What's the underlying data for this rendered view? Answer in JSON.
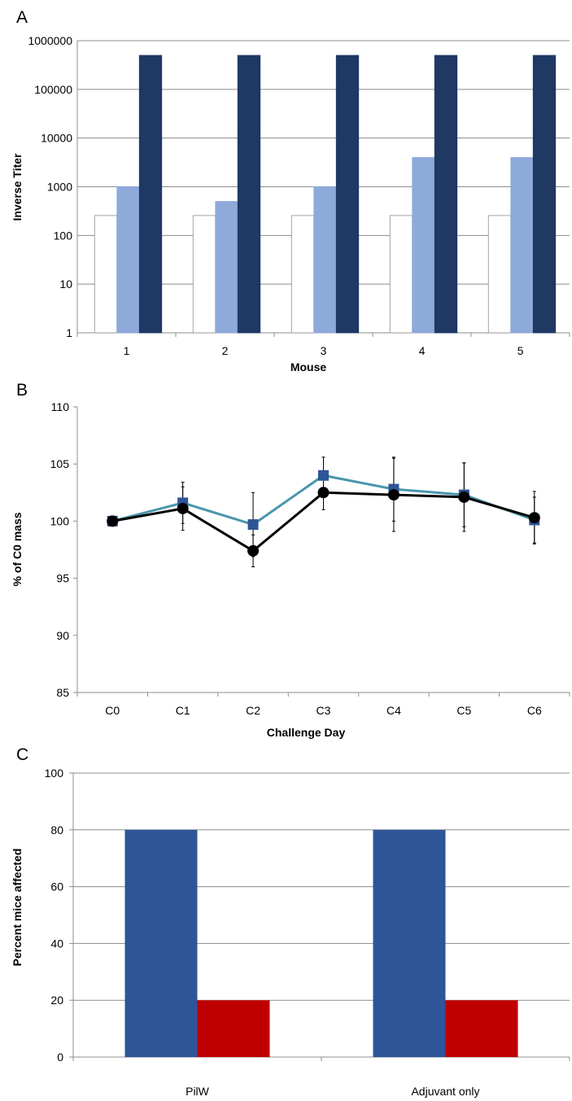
{
  "panels": [
    {
      "letter": "A"
    },
    {
      "letter": "B"
    },
    {
      "letter": "C"
    }
  ],
  "chart_data": [
    {
      "type": "bar",
      "panel": "A",
      "xlabel": "Mouse",
      "ylabel": "Inverse Titer",
      "yscale": "log",
      "ylim": [
        1,
        1000000
      ],
      "yticks": [
        "1",
        "10",
        "100",
        "1000",
        "10000",
        "100000",
        "1000000"
      ],
      "categories": [
        "1",
        "2",
        "3",
        "4",
        "5"
      ],
      "series": [
        {
          "values": [
            256,
            256,
            256,
            256,
            256
          ],
          "color": "#ffffff"
        },
        {
          "values": [
            1000,
            500,
            1000,
            4000,
            4000
          ],
          "color": "#8eaadb"
        },
        {
          "values": [
            500000,
            500000,
            500000,
            500000,
            500000
          ],
          "color": "#1f3864"
        }
      ],
      "grid": true,
      "legend": "none"
    },
    {
      "type": "line",
      "panel": "B",
      "xlabel": "Challenge Day",
      "ylabel": "% of C0 mass",
      "ylim": [
        85,
        110
      ],
      "yticks": [
        "85",
        "90",
        "95",
        "100",
        "105",
        "110"
      ],
      "categories": [
        "C0",
        "C1",
        "C2",
        "C3",
        "C4",
        "C5",
        "C6"
      ],
      "series": [
        {
          "marker": "square",
          "color": "#4a96ac",
          "marker_color": "#2e5597",
          "values": [
            100,
            101.6,
            99.7,
            104,
            102.8,
            102.3,
            100.1
          ],
          "errors": [
            0,
            1.8,
            2.8,
            1.6,
            2.8,
            2.8,
            2.0
          ]
        },
        {
          "marker": "circle",
          "color": "#000000",
          "marker_color": "#000000",
          "values": [
            100,
            101.1,
            97.4,
            102.5,
            102.3,
            102.1,
            100.3
          ],
          "errors": [
            0,
            1.9,
            1.4,
            1.5,
            3.2,
            3.0,
            2.3
          ]
        }
      ],
      "grid": false,
      "legend": "none"
    },
    {
      "type": "bar",
      "panel": "C",
      "ylabel": "Percent mice affected",
      "ylim": [
        0,
        100
      ],
      "yticks": [
        "0",
        "20",
        "40",
        "60",
        "80",
        "100"
      ],
      "categories": [
        "PilW",
        "Adjuvant only"
      ],
      "series": [
        {
          "values": [
            80,
            80
          ],
          "color": "#2e5597"
        },
        {
          "values": [
            20,
            20
          ],
          "color": "#c00000"
        }
      ],
      "grid": true,
      "legend": "none"
    }
  ]
}
